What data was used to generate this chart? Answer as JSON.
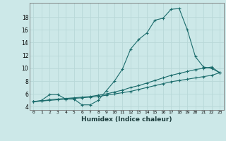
{
  "title": "",
  "xlabel": "Humidex (Indice chaleur)",
  "bg_color": "#cce8e8",
  "grid_color": "#b8d8d8",
  "line_color": "#1a6b6b",
  "xlim": [
    -0.5,
    23.5
  ],
  "ylim": [
    3.5,
    20.2
  ],
  "xticks": [
    0,
    1,
    2,
    3,
    4,
    5,
    6,
    7,
    8,
    9,
    10,
    11,
    12,
    13,
    14,
    15,
    16,
    17,
    18,
    19,
    20,
    21,
    22,
    23
  ],
  "yticks": [
    4,
    6,
    8,
    10,
    12,
    14,
    16,
    18
  ],
  "series1_x": [
    0,
    1,
    2,
    3,
    4,
    5,
    6,
    7,
    8,
    9,
    10,
    11,
    12,
    13,
    14,
    15,
    16,
    17,
    18,
    19,
    20,
    21,
    22,
    23
  ],
  "series1_y": [
    4.8,
    5.0,
    5.9,
    5.9,
    5.2,
    5.2,
    4.3,
    4.3,
    5.0,
    6.5,
    8.0,
    9.9,
    13.0,
    14.5,
    15.5,
    17.5,
    17.8,
    19.2,
    19.3,
    16.0,
    11.8,
    10.2,
    10.0,
    9.3
  ],
  "series2_x": [
    0,
    1,
    2,
    3,
    4,
    5,
    6,
    7,
    8,
    9,
    10,
    11,
    12,
    13,
    14,
    15,
    16,
    17,
    18,
    19,
    20,
    21,
    22,
    23
  ],
  "series2_y": [
    4.8,
    4.9,
    5.1,
    5.2,
    5.3,
    5.4,
    5.5,
    5.6,
    5.8,
    6.0,
    6.3,
    6.6,
    7.0,
    7.3,
    7.7,
    8.1,
    8.5,
    8.9,
    9.2,
    9.5,
    9.8,
    10.0,
    10.2,
    9.3
  ],
  "series3_x": [
    0,
    1,
    2,
    3,
    4,
    5,
    6,
    7,
    8,
    9,
    10,
    11,
    12,
    13,
    14,
    15,
    16,
    17,
    18,
    19,
    20,
    21,
    22,
    23
  ],
  "series3_y": [
    4.8,
    4.9,
    5.0,
    5.1,
    5.2,
    5.3,
    5.4,
    5.5,
    5.6,
    5.8,
    6.0,
    6.2,
    6.4,
    6.7,
    7.0,
    7.3,
    7.6,
    7.9,
    8.1,
    8.3,
    8.5,
    8.7,
    8.9,
    9.3
  ]
}
